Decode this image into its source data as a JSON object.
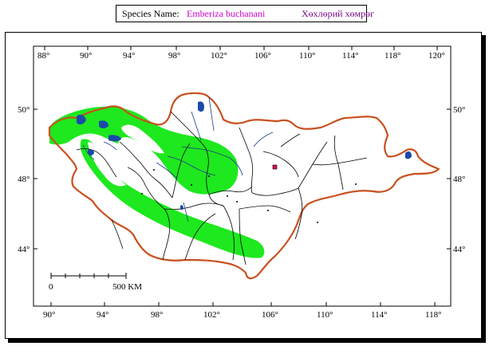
{
  "legend": {
    "label": "Species Name:",
    "scientific_name": "Emberiza buchanani",
    "local_name": "Хөхлөрий хөмрөг",
    "scientific_name_color": "#cc00cc",
    "local_name_color": "#7a0a8a"
  },
  "map": {
    "top_longitudes": [
      "88°",
      "90°",
      "94°",
      "98°",
      "102°",
      "106°",
      "110°",
      "114°",
      "118°",
      "120°"
    ],
    "bottom_longitudes": [
      "90°",
      "94°",
      "98°",
      "102°",
      "106°",
      "110°",
      "114°",
      "118°"
    ],
    "left_latitudes": [
      "50°",
      "48°",
      "44°"
    ],
    "right_latitudes": [
      "50°",
      "48°",
      "44°"
    ],
    "scale_bar": {
      "start_label": "0",
      "end_label": "500 KM"
    },
    "colors": {
      "range_fill": "#1ee81e",
      "border": "#c8501e",
      "lakes": "#1a4aa8",
      "rivers": "#1a3a8a",
      "provinces": "#000000"
    }
  }
}
